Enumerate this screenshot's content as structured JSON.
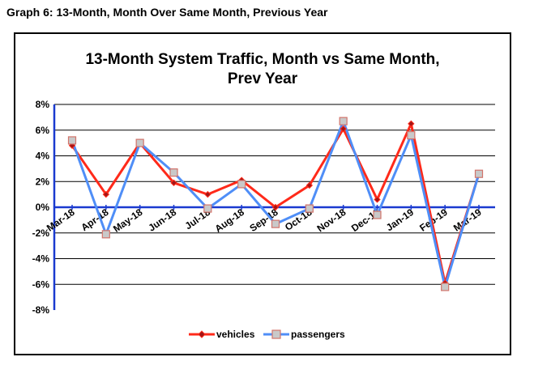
{
  "page": {
    "heading": "Graph 6: 13-Month, Month Over Same Month, Previous Year"
  },
  "chart_data": {
    "type": "line",
    "title_lines": [
      "13-Month System Traffic, Month vs Same Month,",
      "Prev Year"
    ],
    "categories": [
      "Mar-18",
      "Apr-18",
      "May-18",
      "Jun-18",
      "Jul-18",
      "Aug-18",
      "Sep-18",
      "Oct-18",
      "Nov-18",
      "Dec-18",
      "Jan-19",
      "Feb-19",
      "Mar-19"
    ],
    "series": [
      {
        "name": "vehicles",
        "color": "#ff2a1a",
        "values": [
          4.8,
          1.0,
          5.0,
          1.9,
          1.0,
          2.1,
          0.0,
          1.7,
          6.1,
          0.6,
          6.5,
          -5.9,
          2.6
        ]
      },
      {
        "name": "passengers",
        "color": "#4f8ef7",
        "values": [
          5.2,
          -2.1,
          5.0,
          2.7,
          -0.1,
          1.8,
          -1.3,
          -0.1,
          6.7,
          -0.6,
          5.6,
          -6.2,
          2.6
        ]
      }
    ],
    "ylim": [
      -8,
      8
    ],
    "yticks": [
      "8%",
      "6%",
      "4%",
      "2%",
      "0%",
      "-2%",
      "-4%",
      "-6%",
      "-8%"
    ],
    "xlabel": "",
    "ylabel": "",
    "grid": true,
    "legend": "bottom-center"
  },
  "colors": {
    "axis": "#1a3ad0",
    "grid": "#000000",
    "marker_fill": "#c9c9c9"
  }
}
